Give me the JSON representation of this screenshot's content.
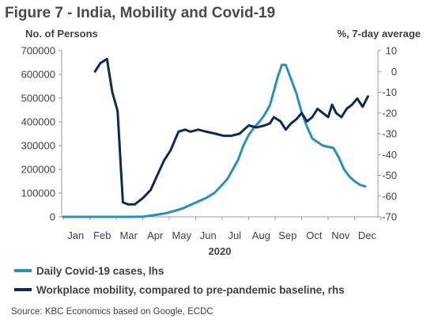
{
  "chart_data": {
    "type": "line",
    "title": "Figure 7 - India, Mobility and Covid-19",
    "ylabel_left": "No. of Persons",
    "ylabel_right": "%, 7-day average",
    "xlabel": "2020",
    "x_ticks": [
      "Jan",
      "Feb",
      "Mar",
      "Apr",
      "May",
      "Jun",
      "Jul",
      "Aug",
      "Sep",
      "Oct",
      "Nov",
      "Dec"
    ],
    "y_left_ticks": [
      "0",
      "100000",
      "200000",
      "300000",
      "400000",
      "500000",
      "600000",
      "700000"
    ],
    "y_left_lim": [
      0,
      700000
    ],
    "y_right_ticks": [
      "10",
      "0",
      "-10",
      "-20",
      "-30",
      "-40",
      "-50",
      "-60",
      "-70"
    ],
    "y_right_lim": [
      -70,
      10
    ],
    "grid": false,
    "legend_position": "bottom",
    "series": [
      {
        "name": "Daily Covid-19 cases, lhs",
        "axis": "left",
        "color": "#2a8fbd",
        "x": [
          0,
          0.5,
          1,
          1.5,
          2,
          2.5,
          3,
          3.3,
          3.6,
          3.9,
          4.2,
          4.5,
          4.8,
          5.1,
          5.4,
          5.7,
          6,
          6.2,
          6.4,
          6.6,
          6.8,
          7,
          7.2,
          7.4,
          7.6,
          7.8,
          8,
          8.1,
          8.25,
          8.4,
          8.6,
          8.8,
          9,
          9.2,
          9.4,
          9.6,
          9.8,
          10,
          10.2,
          10.4,
          10.6,
          10.8,
          11,
          11.2,
          11.4
        ],
        "y": [
          0,
          0,
          0,
          0,
          0,
          0,
          1000,
          5000,
          10000,
          16000,
          25000,
          35000,
          50000,
          65000,
          80000,
          100000,
          135000,
          160000,
          200000,
          240000,
          300000,
          345000,
          375000,
          400000,
          430000,
          470000,
          550000,
          590000,
          640000,
          640000,
          580000,
          520000,
          440000,
          380000,
          330000,
          315000,
          300000,
          295000,
          290000,
          250000,
          200000,
          170000,
          150000,
          135000,
          128000
        ]
      },
      {
        "name": "Workplace mobility, compared to pre-pandemic baseline, rhs",
        "axis": "right",
        "color": "#0f2a4f",
        "x": [
          1.2,
          1.4,
          1.65,
          1.85,
          2.05,
          2.25,
          2.45,
          2.7,
          3,
          3.3,
          3.55,
          3.8,
          4.05,
          4.35,
          4.6,
          4.8,
          5.1,
          5.4,
          5.75,
          6.05,
          6.35,
          6.65,
          7,
          7.3,
          7.6,
          7.8,
          7.95,
          8.2,
          8.4,
          8.6,
          8.8,
          9,
          9.2,
          9.4,
          9.6,
          9.8,
          10,
          10.15,
          10.3,
          10.5,
          10.7,
          10.9,
          11.1,
          11.3,
          11.5
        ],
        "y": [
          0,
          4,
          6,
          -10,
          -19,
          -63,
          -64,
          -64,
          -61,
          -57,
          -50,
          -43,
          -38,
          -29,
          -28,
          -29,
          -28,
          -29,
          -30,
          -31,
          -31,
          -30,
          -26,
          -27,
          -26,
          -25,
          -22,
          -24,
          -28,
          -25,
          -23,
          -20,
          -24,
          -22,
          -18,
          -20,
          -22,
          -16,
          -20,
          -22,
          -18,
          -16,
          -13,
          -17,
          -12
        ]
      }
    ]
  },
  "legend": {
    "item1": "Daily Covid-19 cases, lhs",
    "item2": "Workplace mobility, compared to pre-pandemic baseline, rhs"
  },
  "source": "Source: KBC Economics based on Google, ECDC"
}
